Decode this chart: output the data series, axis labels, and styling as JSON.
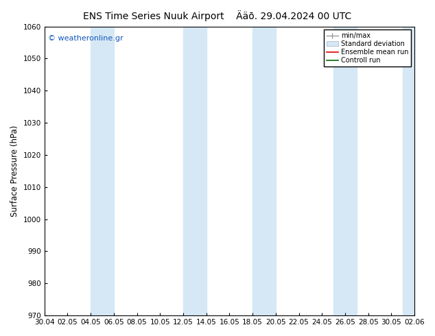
{
  "title_left": "ENS Time Series Nuuk Airport",
  "title_right": "Ääō. 29.04.2024 00 UTC",
  "ylabel": "Surface Pressure (hPa)",
  "ylim": [
    970,
    1060
  ],
  "yticks": [
    970,
    980,
    990,
    1000,
    1010,
    1020,
    1030,
    1040,
    1050,
    1060
  ],
  "xtick_labels": [
    "30.04",
    "02.05",
    "04.05",
    "06.05",
    "08.05",
    "10.05",
    "12.05",
    "14.05",
    "16.05",
    "18.05",
    "20.05",
    "22.05",
    "24.05",
    "26.05",
    "28.05",
    "30.05",
    "02.06"
  ],
  "num_xticks": 17,
  "band_color": "#d6e8f5",
  "background_color": "#ffffff",
  "watermark": "© weatheronline.gr",
  "legend_items": [
    {
      "label": "min/max",
      "color": "#aabbcc",
      "type": "errbar"
    },
    {
      "label": "Standard deviation",
      "color": "#c8dcea",
      "type": "box"
    },
    {
      "label": "Ensemble mean run",
      "color": "#dd0000",
      "type": "line"
    },
    {
      "label": "Controll run",
      "color": "#006600",
      "type": "line"
    }
  ],
  "title_fontsize": 10,
  "tick_fontsize": 7.5,
  "ylabel_fontsize": 8.5,
  "watermark_fontsize": 8,
  "watermark_color": "#1155bb"
}
